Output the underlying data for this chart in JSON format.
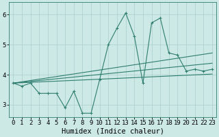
{
  "xlabel": "Humidex (Indice chaleur)",
  "xlim": [
    -0.5,
    23.5
  ],
  "ylim": [
    2.6,
    6.4
  ],
  "yticks": [
    3,
    4,
    5,
    6
  ],
  "xticks": [
    0,
    1,
    2,
    3,
    4,
    5,
    6,
    7,
    8,
    9,
    10,
    11,
    12,
    13,
    14,
    15,
    16,
    17,
    18,
    19,
    20,
    21,
    22,
    23
  ],
  "main_line_x": [
    0,
    1,
    2,
    3,
    4,
    5,
    6,
    7,
    8,
    9,
    10,
    11,
    12,
    13,
    14,
    15,
    16,
    17,
    18,
    19,
    20,
    21,
    22,
    23
  ],
  "main_line_y": [
    3.72,
    3.62,
    3.72,
    3.38,
    3.38,
    3.38,
    2.9,
    3.45,
    2.72,
    2.72,
    3.85,
    5.0,
    5.55,
    6.05,
    5.28,
    3.72,
    5.72,
    5.88,
    4.72,
    4.65,
    4.12,
    4.18,
    4.12,
    4.18
  ],
  "upper_line_x": [
    0,
    23
  ],
  "upper_line_y": [
    3.72,
    4.72
  ],
  "lower_line_x": [
    0,
    23
  ],
  "lower_line_y": [
    3.72,
    4.02
  ],
  "mid_line_x": [
    0,
    23
  ],
  "mid_line_y": [
    3.72,
    4.38
  ],
  "line_color": "#2e7d6e",
  "bg_color": "#cce9e6",
  "grid_color": "#aacfcc",
  "tick_fontsize": 6.5,
  "label_fontsize": 7.5
}
